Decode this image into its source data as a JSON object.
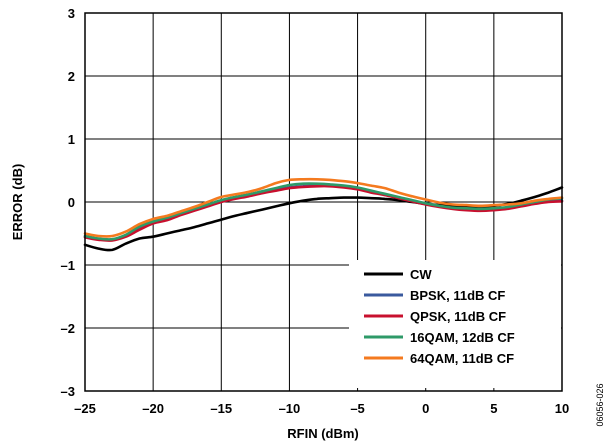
{
  "figure_id": "06056-026",
  "chart_data": {
    "type": "line",
    "title": "",
    "xlabel": "RFIN (dBm)",
    "ylabel": "ERROR (dB)",
    "xlim": [
      -25,
      10
    ],
    "ylim": [
      -3,
      3
    ],
    "x_ticks": [
      -25,
      -20,
      -15,
      -10,
      -5,
      0,
      5,
      10
    ],
    "y_ticks": [
      -3,
      -2,
      -1,
      0,
      1,
      2,
      3
    ],
    "x_tick_labels": [
      "–25",
      "–20",
      "–15",
      "–10",
      "–5",
      "0",
      "5",
      "10"
    ],
    "y_tick_labels": [
      "–3",
      "–2",
      "–1",
      "0",
      "1",
      "2",
      "3"
    ],
    "grid": true,
    "legend_position": "bottom-right",
    "series": [
      {
        "name": "CW",
        "color": "#000000",
        "x": [
          -25,
          -24,
          -23,
          -22,
          -21,
          -20,
          -19,
          -18,
          -17,
          -16,
          -15,
          -14,
          -13,
          -12,
          -11,
          -10,
          -9,
          -8,
          -7,
          -6,
          -5,
          -4,
          -3,
          -2,
          -1,
          0,
          1,
          2,
          3,
          4,
          5,
          6,
          7,
          8,
          9,
          10
        ],
        "y": [
          -0.68,
          -0.74,
          -0.76,
          -0.66,
          -0.58,
          -0.55,
          -0.5,
          -0.45,
          -0.4,
          -0.34,
          -0.28,
          -0.22,
          -0.17,
          -0.12,
          -0.07,
          -0.02,
          0.02,
          0.05,
          0.06,
          0.07,
          0.07,
          0.06,
          0.05,
          0.03,
          0.0,
          -0.03,
          -0.05,
          -0.06,
          -0.07,
          -0.07,
          -0.06,
          -0.03,
          0.02,
          0.08,
          0.15,
          0.23
        ]
      },
      {
        "name": "BPSK, 11dB CF",
        "color": "#3a5a9e",
        "x": [
          -25,
          -24,
          -23,
          -22,
          -21,
          -20,
          -19,
          -18,
          -17,
          -16,
          -15,
          -14,
          -13,
          -12,
          -11,
          -10,
          -9,
          -8,
          -7,
          -6,
          -5,
          -4,
          -3,
          -2,
          -1,
          0,
          1,
          2,
          3,
          4,
          5,
          6,
          7,
          8,
          9,
          10
        ],
        "y": [
          -0.55,
          -0.59,
          -0.6,
          -0.54,
          -0.42,
          -0.33,
          -0.28,
          -0.2,
          -0.13,
          -0.06,
          0.02,
          0.06,
          0.1,
          0.15,
          0.19,
          0.23,
          0.25,
          0.26,
          0.26,
          0.24,
          0.21,
          0.16,
          0.12,
          0.07,
          0.02,
          -0.03,
          -0.07,
          -0.1,
          -0.12,
          -0.13,
          -0.12,
          -0.1,
          -0.06,
          -0.02,
          0.01,
          0.02
        ]
      },
      {
        "name": "QPSK, 11dB CF",
        "color": "#c8102e",
        "x": [
          -25,
          -24,
          -23,
          -22,
          -21,
          -20,
          -19,
          -18,
          -17,
          -16,
          -15,
          -14,
          -13,
          -12,
          -11,
          -10,
          -9,
          -8,
          -7,
          -6,
          -5,
          -4,
          -3,
          -2,
          -1,
          0,
          1,
          2,
          3,
          4,
          5,
          6,
          7,
          8,
          9,
          10
        ],
        "y": [
          -0.56,
          -0.6,
          -0.61,
          -0.55,
          -0.44,
          -0.34,
          -0.29,
          -0.21,
          -0.14,
          -0.07,
          0.0,
          0.05,
          0.09,
          0.14,
          0.18,
          0.22,
          0.24,
          0.25,
          0.25,
          0.23,
          0.2,
          0.15,
          0.11,
          0.06,
          0.01,
          -0.04,
          -0.08,
          -0.11,
          -0.13,
          -0.14,
          -0.13,
          -0.11,
          -0.07,
          -0.03,
          0.0,
          0.01
        ]
      },
      {
        "name": "16QAM, 12dB CF",
        "color": "#2e9a68",
        "x": [
          -25,
          -24,
          -23,
          -22,
          -21,
          -20,
          -19,
          -18,
          -17,
          -16,
          -15,
          -14,
          -13,
          -12,
          -11,
          -10,
          -9,
          -8,
          -7,
          -6,
          -5,
          -4,
          -3,
          -2,
          -1,
          0,
          1,
          2,
          3,
          4,
          5,
          6,
          7,
          8,
          9,
          10
        ],
        "y": [
          -0.54,
          -0.58,
          -0.59,
          -0.52,
          -0.39,
          -0.31,
          -0.25,
          -0.18,
          -0.11,
          -0.04,
          0.03,
          0.08,
          0.12,
          0.17,
          0.22,
          0.27,
          0.29,
          0.29,
          0.28,
          0.26,
          0.23,
          0.18,
          0.13,
          0.08,
          0.03,
          -0.02,
          -0.06,
          -0.09,
          -0.1,
          -0.11,
          -0.1,
          -0.08,
          -0.04,
          0.0,
          0.04,
          0.06
        ]
      },
      {
        "name": "64QAM, 11dB CF",
        "color": "#f47a1f",
        "x": [
          -25,
          -24,
          -23,
          -22,
          -21,
          -20,
          -19,
          -18,
          -17,
          -16,
          -15,
          -14,
          -13,
          -12,
          -11,
          -10,
          -9,
          -8,
          -7,
          -6,
          -5,
          -4,
          -3,
          -2,
          -1,
          0,
          1,
          2,
          3,
          4,
          5,
          6,
          7,
          8,
          9,
          10
        ],
        "y": [
          -0.5,
          -0.54,
          -0.54,
          -0.47,
          -0.35,
          -0.27,
          -0.22,
          -0.15,
          -0.08,
          0.0,
          0.08,
          0.12,
          0.16,
          0.22,
          0.3,
          0.35,
          0.36,
          0.36,
          0.35,
          0.33,
          0.3,
          0.26,
          0.22,
          0.15,
          0.09,
          0.04,
          -0.01,
          -0.04,
          -0.05,
          -0.06,
          -0.05,
          -0.04,
          -0.02,
          0.02,
          0.05,
          0.07
        ]
      }
    ]
  }
}
